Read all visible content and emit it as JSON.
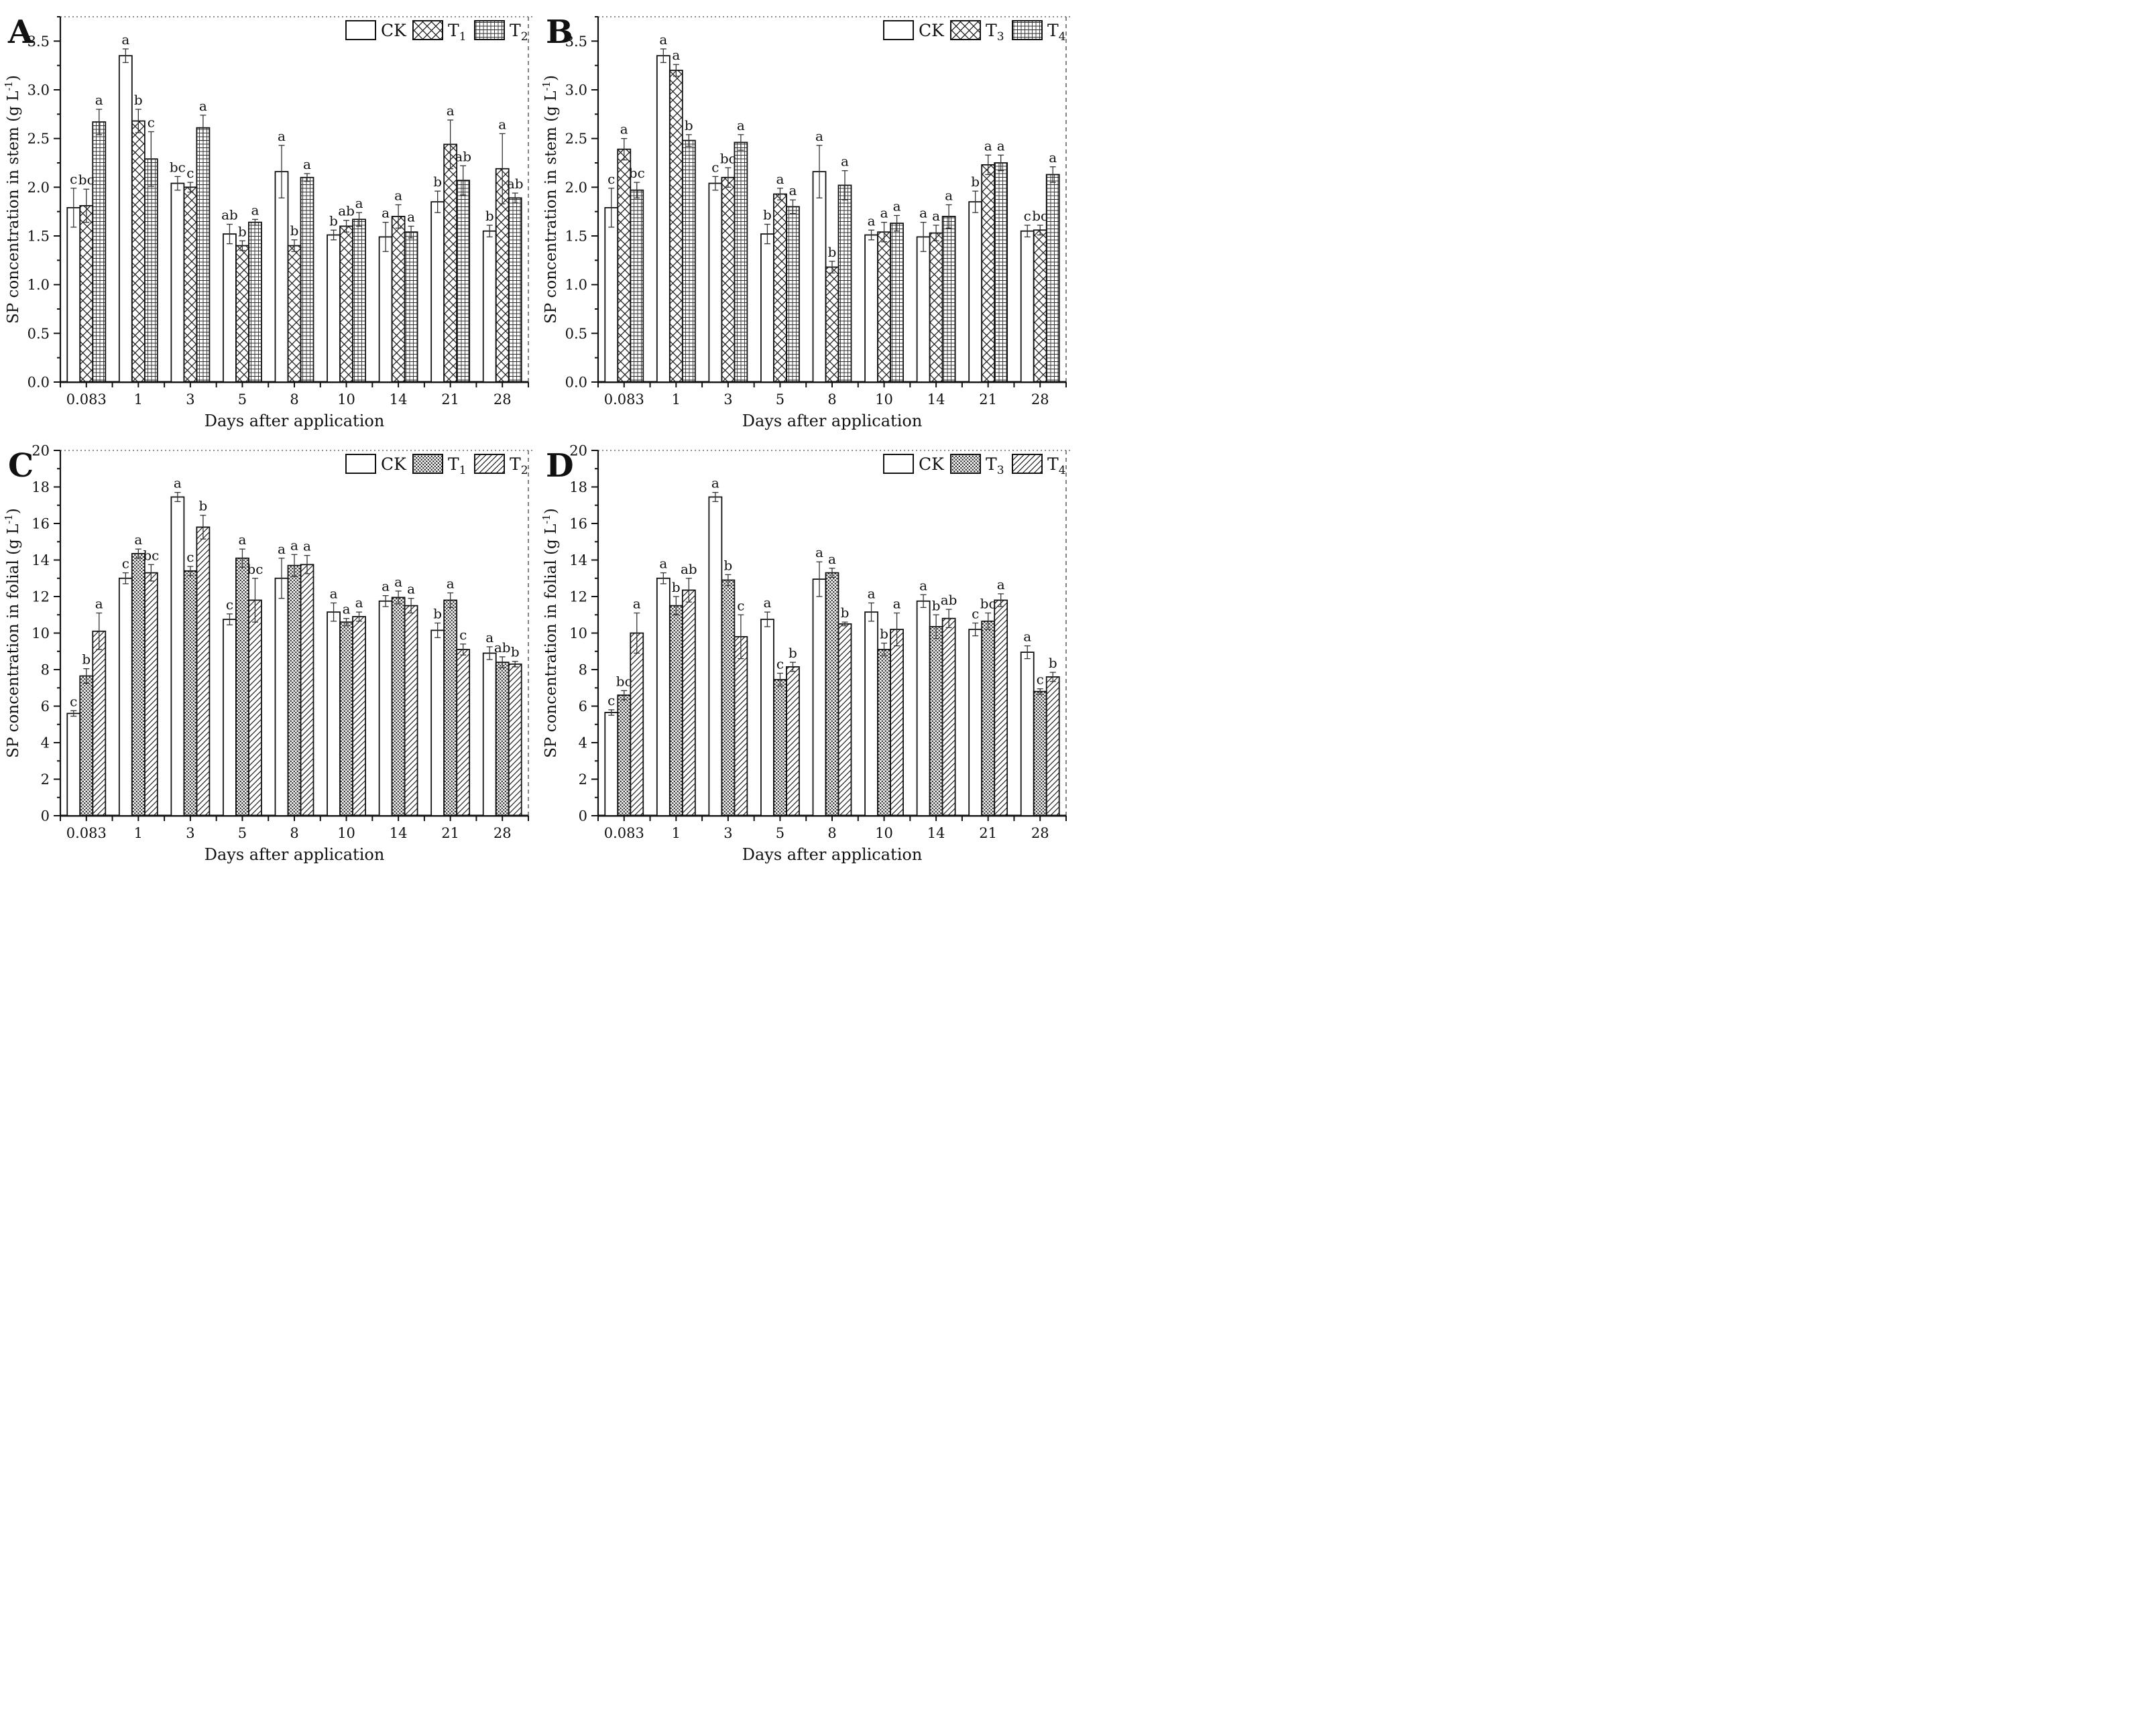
{
  "figure": {
    "background": "#ffffff",
    "ink_color": "#111111",
    "border_style": "top dotted, right dashed",
    "layout": "2x2 grid of grouped bar charts, legend top-right inside plot, no gridlines"
  },
  "chart_data": [
    {
      "type": "bar",
      "panel_label": "A",
      "ylabel": "SP concentration in stem (g L⁻¹)",
      "ylabel_pre": "SP concentration in stem (g L",
      "ylabel_sup": "-1",
      "ylabel_post": ")",
      "xlabel": "Days after application",
      "categories": [
        "0.083",
        "1",
        "3",
        "5",
        "8",
        "10",
        "14",
        "21",
        "28"
      ],
      "ylim": [
        0,
        3.75
      ],
      "ytick_major": 0.5,
      "ytick_minor": 0.25,
      "ytick_decimals": 1,
      "legend_position": "top-right",
      "legend": [
        {
          "label": "CK",
          "sub": "",
          "pattern": "plain"
        },
        {
          "label": "T",
          "sub": "1",
          "pattern": "crosshatch"
        },
        {
          "label": "T",
          "sub": "2",
          "pattern": "grid"
        }
      ],
      "series": [
        {
          "name": "CK",
          "pattern": "plain",
          "values": [
            1.79,
            3.35,
            2.04,
            1.52,
            2.16,
            1.51,
            1.49,
            1.85,
            1.55
          ],
          "errors": [
            0.2,
            0.07,
            0.07,
            0.1,
            0.27,
            0.05,
            0.15,
            0.11,
            0.06
          ],
          "letters": [
            "c",
            "a",
            "bc",
            "ab",
            "a",
            "b",
            "a",
            "b",
            "b"
          ]
        },
        {
          "name": "T1",
          "pattern": "crosshatch",
          "values": [
            1.81,
            2.68,
            2.0,
            1.4,
            1.4,
            1.6,
            1.7,
            2.44,
            2.19
          ],
          "errors": [
            0.17,
            0.12,
            0.05,
            0.05,
            0.06,
            0.06,
            0.12,
            0.25,
            0.36
          ],
          "letters": [
            "bc",
            "b",
            "c",
            "b",
            "b",
            "ab",
            "a",
            "a",
            "a"
          ]
        },
        {
          "name": "T2",
          "pattern": "grid",
          "values": [
            2.67,
            2.29,
            2.61,
            1.64,
            2.1,
            1.67,
            1.54,
            2.07,
            1.89
          ],
          "errors": [
            0.13,
            0.28,
            0.13,
            0.03,
            0.04,
            0.07,
            0.06,
            0.15,
            0.05
          ],
          "letters": [
            "a",
            "c",
            "a",
            "a",
            "a",
            "a",
            "a",
            "ab",
            "ab"
          ]
        }
      ]
    },
    {
      "type": "bar",
      "panel_label": "B",
      "ylabel": "SP concentration in stem (g L⁻¹)",
      "ylabel_pre": "SP concentration in stem (g L",
      "ylabel_sup": "-1",
      "ylabel_post": ")",
      "xlabel": "Days after application",
      "categories": [
        "0.083",
        "1",
        "3",
        "5",
        "8",
        "10",
        "14",
        "21",
        "28"
      ],
      "ylim": [
        0,
        3.75
      ],
      "ytick_major": 0.5,
      "ytick_minor": 0.25,
      "ytick_decimals": 1,
      "legend_position": "top-right",
      "legend": [
        {
          "label": "CK",
          "sub": "",
          "pattern": "plain"
        },
        {
          "label": "T",
          "sub": "3",
          "pattern": "crosshatch"
        },
        {
          "label": "T",
          "sub": "4",
          "pattern": "grid"
        }
      ],
      "series": [
        {
          "name": "CK",
          "pattern": "plain",
          "values": [
            1.79,
            3.35,
            2.04,
            1.52,
            2.16,
            1.51,
            1.49,
            1.85,
            1.55
          ],
          "errors": [
            0.2,
            0.07,
            0.07,
            0.1,
            0.27,
            0.05,
            0.15,
            0.11,
            0.06
          ],
          "letters": [
            "c",
            "a",
            "c",
            "b",
            "a",
            "a",
            "a",
            "b",
            "c"
          ]
        },
        {
          "name": "T3",
          "pattern": "crosshatch",
          "values": [
            2.39,
            3.2,
            2.1,
            1.93,
            1.18,
            1.54,
            1.53,
            2.23,
            1.56
          ],
          "errors": [
            0.11,
            0.06,
            0.1,
            0.06,
            0.06,
            0.1,
            0.08,
            0.1,
            0.05
          ],
          "letters": [
            "a",
            "a",
            "bc",
            "a",
            "b",
            "a",
            "a",
            "a",
            "bc"
          ]
        },
        {
          "name": "T4",
          "pattern": "grid",
          "values": [
            1.97,
            2.48,
            2.46,
            1.8,
            2.02,
            1.63,
            1.7,
            2.25,
            2.13
          ],
          "errors": [
            0.08,
            0.06,
            0.08,
            0.07,
            0.15,
            0.08,
            0.12,
            0.08,
            0.08
          ],
          "letters": [
            "bc",
            "b",
            "a",
            "a",
            "a",
            "a",
            "a",
            "a",
            "a"
          ]
        }
      ]
    },
    {
      "type": "bar",
      "panel_label": "C",
      "ylabel": "SP concentration in folial (g L⁻¹)",
      "ylabel_pre": "SP concentration in folial (g L",
      "ylabel_sup": "-1",
      "ylabel_post": ")",
      "xlabel": "Days after application",
      "categories": [
        "0.083",
        "1",
        "3",
        "5",
        "8",
        "10",
        "14",
        "21",
        "28"
      ],
      "ylim": [
        0,
        20
      ],
      "ytick_major": 2,
      "ytick_minor": 1,
      "ytick_decimals": 0,
      "legend_position": "top-right",
      "legend": [
        {
          "label": "CK",
          "sub": "",
          "pattern": "plain"
        },
        {
          "label": "T",
          "sub": "1",
          "pattern": "dots"
        },
        {
          "label": "T",
          "sub": "2",
          "pattern": "hatch"
        }
      ],
      "series": [
        {
          "name": "CK",
          "pattern": "plain",
          "values": [
            5.6,
            13.0,
            17.45,
            10.75,
            13.0,
            11.15,
            11.75,
            10.15,
            8.9
          ],
          "errors": [
            0.15,
            0.3,
            0.25,
            0.3,
            1.1,
            0.5,
            0.3,
            0.4,
            0.35
          ],
          "letters": [
            "c",
            "c",
            "a",
            "c",
            "a",
            "a",
            "a",
            "b",
            "a"
          ]
        },
        {
          "name": "T1",
          "pattern": "dots",
          "values": [
            7.65,
            14.35,
            13.4,
            14.1,
            13.7,
            10.6,
            11.95,
            11.8,
            8.4
          ],
          "errors": [
            0.4,
            0.25,
            0.25,
            0.5,
            0.6,
            0.2,
            0.35,
            0.4,
            0.3
          ],
          "letters": [
            "b",
            "a",
            "c",
            "a",
            "a",
            "a",
            "a",
            "a",
            "ab"
          ]
        },
        {
          "name": "T2",
          "pattern": "hatch",
          "values": [
            10.1,
            13.3,
            15.8,
            11.8,
            13.75,
            10.9,
            11.5,
            9.1,
            8.3
          ],
          "errors": [
            1.0,
            0.45,
            0.65,
            1.2,
            0.5,
            0.25,
            0.4,
            0.3,
            0.15
          ],
          "letters": [
            "a",
            "bc",
            "b",
            "bc",
            "a",
            "a",
            "a",
            "c",
            "b"
          ]
        }
      ]
    },
    {
      "type": "bar",
      "panel_label": "D",
      "ylabel": "SP concentration in folial (g L⁻¹)",
      "ylabel_pre": "SP concentration in folial (g L",
      "ylabel_sup": "-1",
      "ylabel_post": ")",
      "xlabel": "Days after application",
      "categories": [
        "0.083",
        "1",
        "3",
        "5",
        "8",
        "10",
        "14",
        "21",
        "28"
      ],
      "ylim": [
        0,
        20
      ],
      "ytick_major": 2,
      "ytick_minor": 1,
      "ytick_decimals": 0,
      "legend_position": "top-right",
      "legend": [
        {
          "label": "CK",
          "sub": "",
          "pattern": "plain"
        },
        {
          "label": "T",
          "sub": "3",
          "pattern": "dots"
        },
        {
          "label": "T",
          "sub": "4",
          "pattern": "hatch"
        }
      ],
      "series": [
        {
          "name": "CK",
          "pattern": "plain",
          "values": [
            5.65,
            13.0,
            17.45,
            10.75,
            12.95,
            11.15,
            11.75,
            10.2,
            8.95
          ],
          "errors": [
            0.15,
            0.3,
            0.25,
            0.4,
            0.95,
            0.5,
            0.35,
            0.35,
            0.35
          ],
          "letters": [
            "c",
            "a",
            "a",
            "a",
            "a",
            "a",
            "a",
            "c",
            "a"
          ]
        },
        {
          "name": "T3",
          "pattern": "dots",
          "values": [
            6.6,
            11.5,
            12.9,
            7.45,
            13.3,
            9.1,
            10.35,
            10.65,
            6.8
          ],
          "errors": [
            0.25,
            0.5,
            0.3,
            0.35,
            0.25,
            0.35,
            0.65,
            0.45,
            0.15
          ],
          "letters": [
            "bc",
            "b",
            "b",
            "c",
            "a",
            "b",
            "b",
            "bc",
            "c"
          ]
        },
        {
          "name": "T4",
          "pattern": "hatch",
          "values": [
            10.0,
            12.35,
            9.8,
            8.15,
            10.5,
            10.2,
            10.8,
            11.8,
            7.6
          ],
          "errors": [
            1.1,
            0.65,
            1.2,
            0.25,
            0.1,
            0.9,
            0.5,
            0.35,
            0.25
          ],
          "letters": [
            "a",
            "ab",
            "c",
            "b",
            "b",
            "a",
            "ab",
            "a",
            "b"
          ]
        }
      ]
    }
  ]
}
